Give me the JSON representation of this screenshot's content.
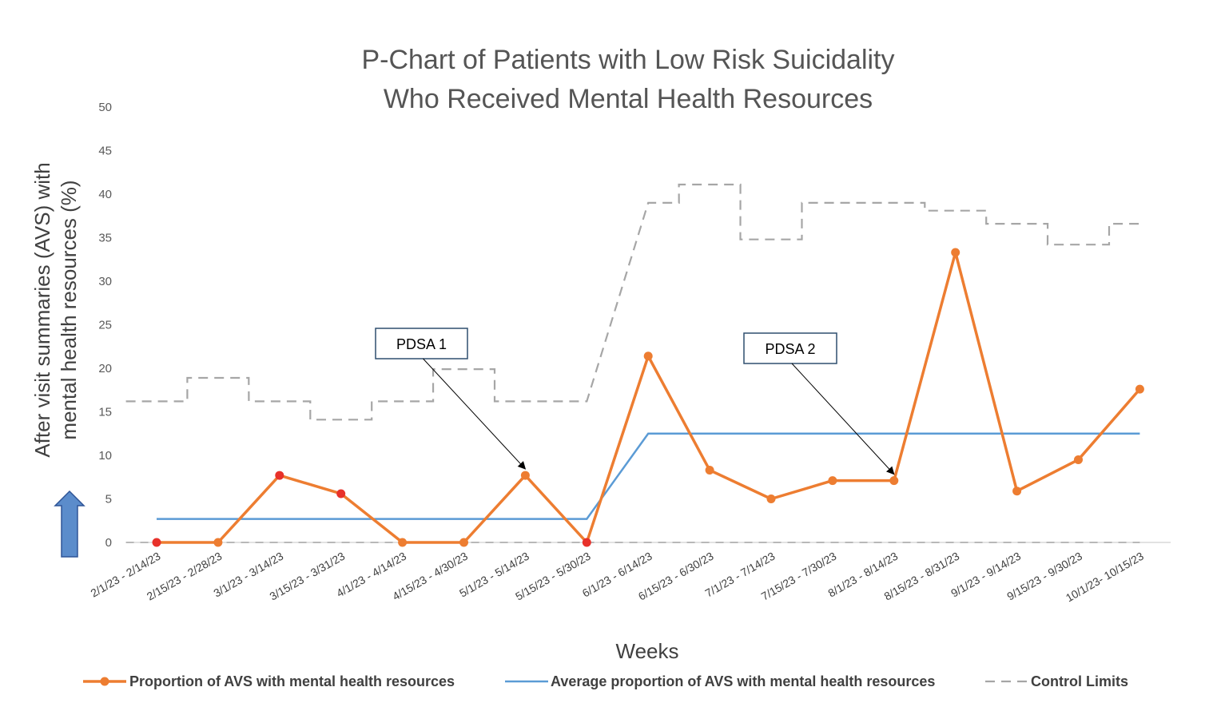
{
  "chart_data": {
    "type": "line",
    "title_lines": [
      "P-Chart of Patients with Low Risk Suicidality",
      "Who Received Mental Health Resources"
    ],
    "xlabel": "Weeks",
    "ylabel_lines": [
      "After visit summaries (AVS)  with",
      "mental health resources  (%)"
    ],
    "ylim": [
      0,
      50
    ],
    "yticks": [
      0,
      5,
      10,
      15,
      20,
      25,
      30,
      35,
      40,
      45,
      50
    ],
    "categories": [
      "2/1/23 - 2/14/23",
      "2/15/23 - 2/28/23",
      "3/1/23 - 3/14/23",
      "3/15/23 - 3/31/23",
      "4/1/23 - 4/14/23",
      "4/15/23 - 4/30/23",
      "5/1/23 - 5/14/23",
      "5/15/23 - 5/30/23",
      "6/1/23 - 6/14/23",
      "6/15/23 - 6/30/23",
      "7/1/23 - 7/14/23",
      "7/15/23 - 7/30/23",
      "8/1/23 - 8/14/23",
      "8/15/23 - 8/31/23",
      "9/1/23 - 9/14/23",
      "9/15/23 - 9/30/23",
      "10/1/23- 10/15/23"
    ],
    "series": [
      {
        "name": "Proportion of AVS with mental health resources",
        "color": "#ED7D31",
        "style": "line-markers",
        "values": [
          0,
          0,
          7.7,
          5.6,
          0,
          0,
          7.7,
          0,
          21.4,
          8.3,
          5.0,
          7.1,
          7.1,
          33.3,
          5.9,
          9.5,
          17.6
        ],
        "highlight_indices": [
          0,
          2,
          3,
          7
        ],
        "highlight_color": "#E8312A"
      },
      {
        "name": "Average proportion of AVS with mental health resources",
        "color": "#5B9BD5",
        "style": "line",
        "values": [
          2.7,
          2.7,
          2.7,
          2.7,
          2.7,
          2.7,
          2.7,
          2.7,
          12.5,
          12.5,
          12.5,
          12.5,
          12.5,
          12.5,
          12.5,
          12.5,
          12.5
        ]
      },
      {
        "name": "Control Limits",
        "color": "#A6A6A6",
        "style": "dashed-step",
        "upper": [
          16.2,
          18.9,
          16.2,
          14.1,
          16.2,
          19.9,
          16.2,
          16.2,
          39.0,
          41.1,
          34.8,
          39.0,
          39.0,
          38.1,
          36.6,
          34.2,
          36.6
        ],
        "lower": [
          0,
          0,
          0,
          0,
          0,
          0,
          0,
          0,
          0,
          0,
          0,
          0,
          0,
          0,
          0,
          0,
          0
        ]
      }
    ],
    "annotations": [
      {
        "label": "PDSA 1",
        "target_index": 6
      },
      {
        "label": "PDSA 2",
        "target_index": 12
      }
    ],
    "legend_position": "bottom",
    "grid": false,
    "arrow_indicator": {
      "direction": "up",
      "color": "#5B8CCB"
    }
  }
}
